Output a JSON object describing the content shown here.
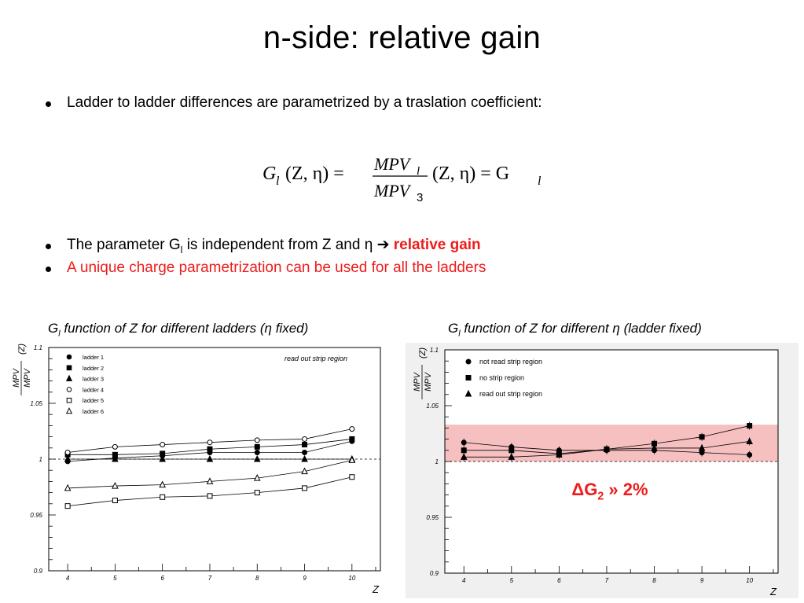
{
  "slide": {
    "title": "n-side: relative gain",
    "bullet1": "Ladder to ladder differences are parametrized by a traslation coefficient:",
    "bullet2_pre": "The parameter G",
    "bullet2_sub": "l",
    "bullet2_mid": " is independent from Z and η ",
    "bullet2_arrow": "➔",
    "bullet2_gain": "relative gain",
    "bullet3": "A unique charge parametrization can be used for all the ladders",
    "caption_left_pre": "G",
    "caption_left_sub": "l",
    "caption_left_post": " function of Z for different ladders (η fixed)",
    "caption_right_pre": "G",
    "caption_right_sub": "l",
    "caption_right_post": " function of Z for different η (ladder fixed)",
    "delta_pre": "ΔG",
    "delta_sub": "2",
    "delta_post": " » 2%",
    "accent_red": "#ee1c1c",
    "band_color": "#f7c0c0"
  },
  "formula": {
    "lhs": "G",
    "lhs_sub": "l",
    "lhs_args": "(Z, η) =",
    "num": "MPV",
    "num_sub": "l",
    "den": "MPV",
    "den_sub": "3",
    "rhs": "(Z, η) = G",
    "rhs_sub": "l"
  },
  "chart_data": [
    {
      "type": "line",
      "marker_lines": true,
      "xlabel": "Z",
      "ylabel": "MPV_l/MPV_3 (Z)",
      "xlim": [
        3.6,
        10.6
      ],
      "ylim": [
        0.9,
        1.1
      ],
      "xticks": [
        "4",
        "5",
        "6",
        "7",
        "8",
        "9",
        "10"
      ],
      "yticks": [
        "0.9",
        "0.95",
        "1",
        "1.05",
        "1.1"
      ],
      "dashed_reference": 1,
      "annotation": "read out strip region",
      "legend_position": "top-left",
      "x": [
        4,
        5,
        6,
        7,
        8,
        9,
        10
      ],
      "series": [
        {
          "name": "ladder 1",
          "marker": "filled-circle",
          "values": [
            0.998,
            1.001,
            1.003,
            1.006,
            1.006,
            1.006,
            1.016
          ]
        },
        {
          "name": "ladder 2",
          "marker": "filled-square",
          "values": [
            1.004,
            1.004,
            1.005,
            1.009,
            1.011,
            1.013,
            1.018
          ]
        },
        {
          "name": "ladder 3",
          "marker": "filled-triangle",
          "values": [
            1.0,
            1.0,
            1.0,
            1.0,
            1.0,
            1.0,
            1.0
          ]
        },
        {
          "name": "ladder 4",
          "marker": "open-circle",
          "values": [
            1.006,
            1.011,
            1.013,
            1.015,
            1.017,
            1.018,
            1.027
          ]
        },
        {
          "name": "ladder 5",
          "marker": "open-square",
          "values": [
            0.958,
            0.963,
            0.966,
            0.967,
            0.97,
            0.974,
            0.984
          ]
        },
        {
          "name": "ladder 6",
          "marker": "open-triangle",
          "values": [
            0.974,
            0.976,
            0.977,
            0.98,
            0.983,
            0.989,
            0.999
          ]
        }
      ]
    },
    {
      "type": "line",
      "marker_lines": true,
      "xlabel": "Z",
      "ylabel": "MPV_2/MPV_3 (Z)",
      "xlim": [
        3.6,
        10.6
      ],
      "ylim": [
        0.9,
        1.1
      ],
      "xticks": [
        "4",
        "5",
        "6",
        "7",
        "8",
        "9",
        "10"
      ],
      "yticks": [
        "0.9",
        "0.95",
        "1",
        "1.05",
        "1.1"
      ],
      "dashed_reference": 1,
      "band": [
        1.0,
        1.033
      ],
      "legend_position": "top-left",
      "x": [
        4,
        5,
        6,
        7,
        8,
        9,
        10
      ],
      "series": [
        {
          "name": "not read strip region",
          "marker": "filled-circle",
          "values": [
            1.017,
            1.013,
            1.01,
            1.01,
            1.01,
            1.008,
            1.006
          ]
        },
        {
          "name": "no strip region",
          "marker": "filled-square",
          "values": [
            1.01,
            1.01,
            1.007,
            1.011,
            1.016,
            1.022,
            1.032
          ]
        },
        {
          "name": "read out strip region",
          "marker": "filled-triangle",
          "values": [
            1.004,
            1.004,
            1.006,
            1.011,
            1.012,
            1.012,
            1.018
          ]
        }
      ]
    }
  ]
}
